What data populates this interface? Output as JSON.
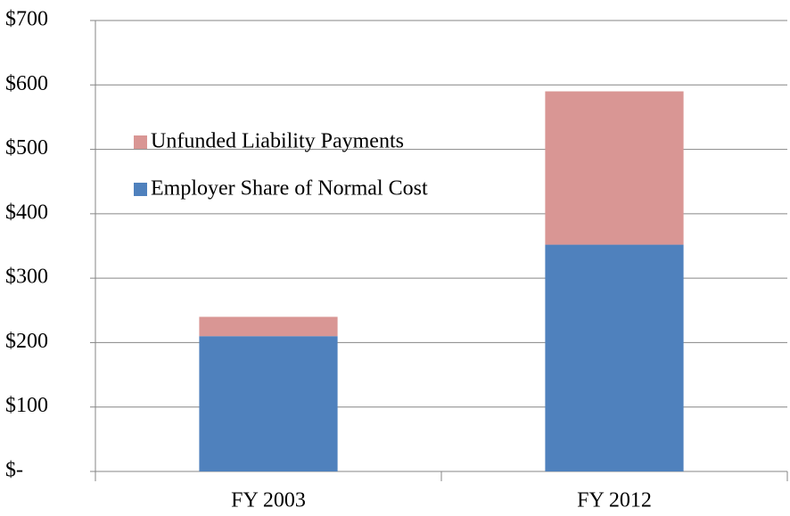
{
  "chart_data": {
    "type": "stacked-bar",
    "categories": [
      "FY 2003",
      "FY 2012"
    ],
    "series": [
      {
        "name": "Employer Share of Normal Cost",
        "color": "#4f81bd",
        "values": [
          210,
          352
        ]
      },
      {
        "name": "Unfunded Liability Payments",
        "color": "#d99694",
        "values": [
          30,
          238
        ]
      }
    ],
    "ylim": [
      0,
      700
    ],
    "yticks": [
      {
        "value": 0,
        "label": "$-"
      },
      {
        "value": 100,
        "label": "$100"
      },
      {
        "value": 200,
        "label": "$200"
      },
      {
        "value": 300,
        "label": "$300"
      },
      {
        "value": 400,
        "label": "$400"
      },
      {
        "value": 500,
        "label": "$500"
      },
      {
        "value": 600,
        "label": "$600"
      },
      {
        "value": 700,
        "label": "$700"
      }
    ],
    "grid": true
  }
}
